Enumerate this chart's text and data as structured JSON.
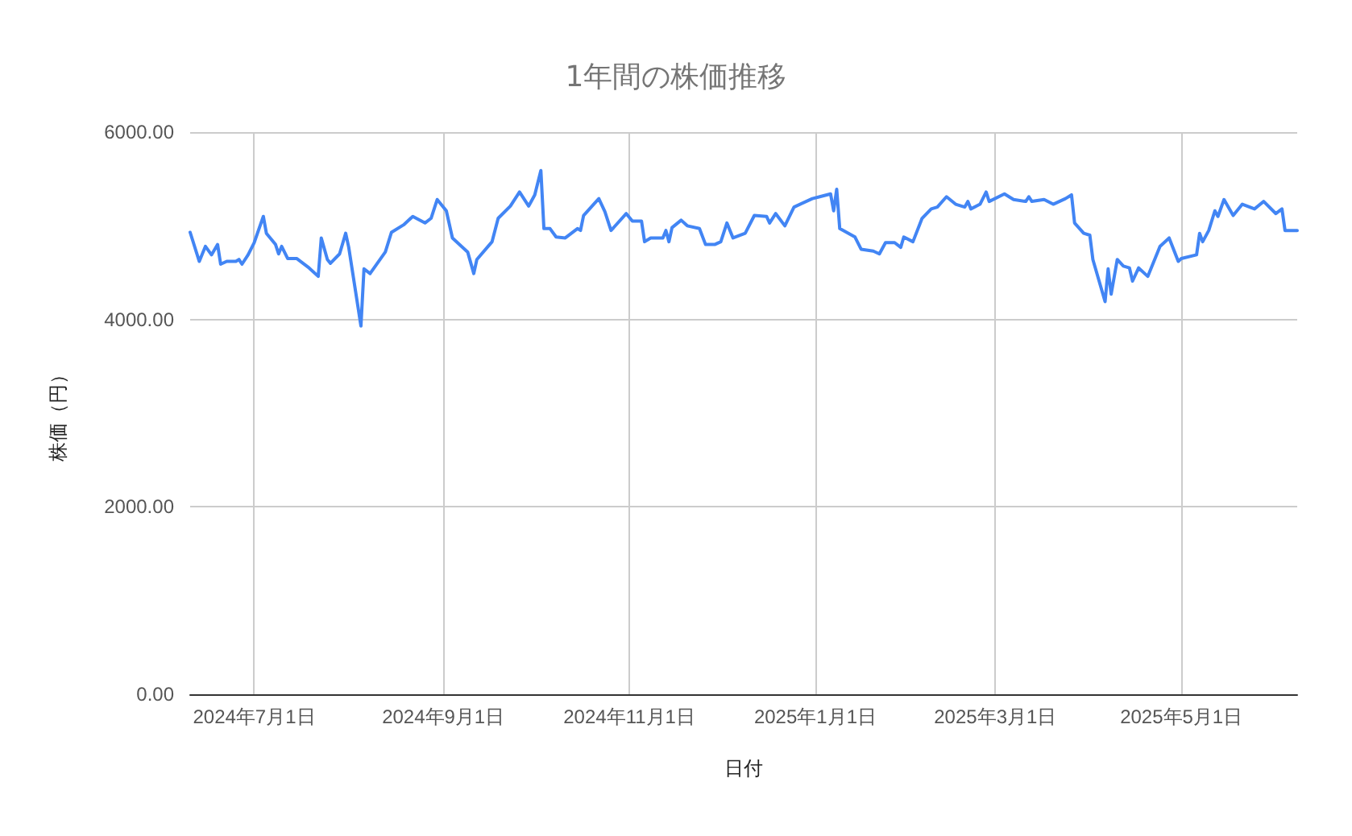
{
  "chart_data": {
    "type": "line",
    "title": "1年間の株価推移",
    "xlabel": "日付",
    "ylabel": "株価（円）",
    "x": [
      "2024-06-10",
      "2024-06-13",
      "2024-06-15",
      "2024-06-17",
      "2024-06-19",
      "2024-06-20",
      "2024-06-22",
      "2024-06-25",
      "2024-06-26",
      "2024-06-27",
      "2024-06-29",
      "2024-07-01",
      "2024-07-04",
      "2024-07-05",
      "2024-07-08",
      "2024-07-09",
      "2024-07-10",
      "2024-07-12",
      "2024-07-15",
      "2024-07-19",
      "2024-07-22",
      "2024-07-23",
      "2024-07-25",
      "2024-07-26",
      "2024-07-29",
      "2024-07-31",
      "2024-08-01",
      "2024-08-05",
      "2024-08-06",
      "2024-08-08",
      "2024-08-13",
      "2024-08-15",
      "2024-08-19",
      "2024-08-22",
      "2024-08-26",
      "2024-08-28",
      "2024-08-30",
      "2024-09-02",
      "2024-09-04",
      "2024-09-09",
      "2024-09-11",
      "2024-09-12",
      "2024-09-17",
      "2024-09-19",
      "2024-09-23",
      "2024-09-26",
      "2024-09-29",
      "2024-10-01",
      "2024-10-03",
      "2024-10-04",
      "2024-10-06",
      "2024-10-08",
      "2024-10-11",
      "2024-10-15",
      "2024-10-16",
      "2024-10-17",
      "2024-10-22",
      "2024-10-24",
      "2024-10-26",
      "2024-10-31",
      "2024-11-02",
      "2024-11-05",
      "2024-11-06",
      "2024-11-08",
      "2024-11-12",
      "2024-11-13",
      "2024-11-14",
      "2024-11-15",
      "2024-11-18",
      "2024-11-20",
      "2024-11-24",
      "2024-11-26",
      "2024-11-29",
      "2024-12-01",
      "2024-12-03",
      "2024-12-05",
      "2024-12-09",
      "2024-12-12",
      "2024-12-16",
      "2024-12-17",
      "2024-12-19",
      "2024-12-22",
      "2024-12-25",
      "2024-12-31",
      "2025-01-06",
      "2025-01-07",
      "2025-01-08",
      "2025-01-09",
      "2025-01-14",
      "2025-01-16",
      "2025-01-20",
      "2025-01-22",
      "2025-01-24",
      "2025-01-27",
      "2025-01-29",
      "2025-01-30",
      "2025-02-02",
      "2025-02-05",
      "2025-02-08",
      "2025-02-10",
      "2025-02-13",
      "2025-02-16",
      "2025-02-19",
      "2025-02-20",
      "2025-02-21",
      "2025-02-24",
      "2025-02-26",
      "2025-02-27",
      "2025-03-04",
      "2025-03-07",
      "2025-03-11",
      "2025-03-12",
      "2025-03-13",
      "2025-03-17",
      "2025-03-20",
      "2025-03-24",
      "2025-03-26",
      "2025-03-27",
      "2025-03-30",
      "2025-04-01",
      "2025-04-02",
      "2025-04-06",
      "2025-04-07",
      "2025-04-08",
      "2025-04-10",
      "2025-04-12",
      "2025-04-14",
      "2025-04-15",
      "2025-04-17",
      "2025-04-20",
      "2025-04-24",
      "2025-04-27",
      "2025-04-30",
      "2025-05-01",
      "2025-05-06",
      "2025-05-07",
      "2025-05-08",
      "2025-05-10",
      "2025-05-12",
      "2025-05-13",
      "2025-05-15",
      "2025-05-18",
      "2025-05-21",
      "2025-05-25",
      "2025-05-28",
      "2025-06-01",
      "2025-06-03",
      "2025-06-04",
      "2025-06-08"
    ],
    "series": [
      {
        "color": "#4285f4",
        "values": [
          4930,
          4620,
          4780,
          4690,
          4800,
          4590,
          4620,
          4620,
          4640,
          4590,
          4690,
          4820,
          5100,
          4920,
          4800,
          4700,
          4780,
          4650,
          4650,
          4550,
          4460,
          4870,
          4640,
          4600,
          4700,
          4920,
          4770,
          3930,
          4540,
          4490,
          4720,
          4930,
          5010,
          5100,
          5030,
          5080,
          5280,
          5160,
          4870,
          4720,
          4490,
          4640,
          4830,
          5080,
          5210,
          5360,
          5210,
          5330,
          5590,
          4970,
          4970,
          4880,
          4870,
          4970,
          4950,
          5110,
          5290,
          5150,
          4950,
          5130,
          5050,
          5050,
          4830,
          4870,
          4870,
          4950,
          4830,
          4980,
          5060,
          5000,
          4970,
          4800,
          4800,
          4830,
          5030,
          4870,
          4920,
          5110,
          5100,
          5030,
          5130,
          5000,
          5200,
          5290,
          5340,
          5160,
          5390,
          4970,
          4880,
          4750,
          4730,
          4700,
          4820,
          4820,
          4770,
          4880,
          4830,
          5080,
          5180,
          5200,
          5310,
          5230,
          5200,
          5260,
          5180,
          5230,
          5360,
          5260,
          5340,
          5280,
          5260,
          5310,
          5260,
          5280,
          5230,
          5290,
          5330,
          5030,
          4920,
          4900,
          4640,
          4190,
          4540,
          4270,
          4640,
          4570,
          4550,
          4410,
          4550,
          4460,
          4780,
          4870,
          4620,
          4650,
          4690,
          4920,
          4830,
          4950,
          5160,
          5100,
          5280,
          5110,
          5230,
          5180,
          5260,
          5130,
          5180,
          4950,
          4950
        ]
      }
    ],
    "xlim": [
      "2024-06-10",
      "2025-06-08"
    ],
    "xticks": [
      {
        "value": "2024-07-01",
        "label": "2024年7月1日"
      },
      {
        "value": "2024-09-01",
        "label": "2024年9月1日"
      },
      {
        "value": "2024-11-01",
        "label": "2024年11月1日"
      },
      {
        "value": "2025-01-01",
        "label": "2025年1月1日"
      },
      {
        "value": "2025-03-01",
        "label": "2025年3月1日"
      },
      {
        "value": "2025-05-01",
        "label": "2025年5月1日"
      }
    ],
    "ylim": [
      0,
      6000
    ],
    "yticks": [
      {
        "value": 0,
        "label": "0.00"
      },
      {
        "value": 2000,
        "label": "2000.00"
      },
      {
        "value": 4000,
        "label": "4000.00"
      },
      {
        "value": 6000,
        "label": "6000.00"
      }
    ],
    "grid": true,
    "marker": "none",
    "line_style": "solid"
  }
}
